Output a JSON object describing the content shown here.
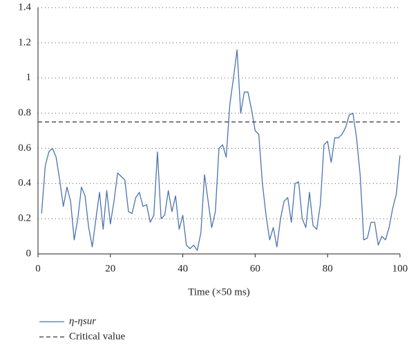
{
  "chart_data": {
    "type": "line",
    "x_label": "Time (×50 ms)",
    "x": [
      1,
      2,
      3,
      4,
      5,
      6,
      7,
      8,
      9,
      10,
      11,
      12,
      13,
      14,
      15,
      16,
      17,
      18,
      19,
      20,
      21,
      22,
      23,
      24,
      25,
      26,
      27,
      28,
      29,
      30,
      31,
      32,
      33,
      34,
      35,
      36,
      37,
      38,
      39,
      40,
      41,
      42,
      43,
      44,
      45,
      46,
      47,
      48,
      49,
      50,
      51,
      52,
      53,
      54,
      55,
      56,
      57,
      58,
      59,
      60,
      61,
      62,
      63,
      64,
      65,
      66,
      67,
      68,
      69,
      70,
      71,
      72,
      73,
      74,
      75,
      76,
      77,
      78,
      79,
      80,
      81,
      82,
      83,
      84,
      85,
      86,
      87,
      88,
      89,
      90,
      91,
      92,
      93,
      94,
      95,
      96,
      97,
      98,
      99,
      100
    ],
    "series": [
      {
        "name": "η-ηsur",
        "color": "#4a72b0",
        "values": [
          0.23,
          0.5,
          0.58,
          0.6,
          0.55,
          0.42,
          0.27,
          0.38,
          0.3,
          0.08,
          0.2,
          0.38,
          0.33,
          0.15,
          0.04,
          0.2,
          0.35,
          0.14,
          0.36,
          0.17,
          0.3,
          0.46,
          0.44,
          0.42,
          0.24,
          0.23,
          0.32,
          0.35,
          0.27,
          0.28,
          0.18,
          0.22,
          0.58,
          0.2,
          0.22,
          0.36,
          0.24,
          0.33,
          0.14,
          0.22,
          0.05,
          0.03,
          0.05,
          0.02,
          0.12,
          0.45,
          0.3,
          0.15,
          0.24,
          0.6,
          0.62,
          0.55,
          0.85,
          1.0,
          1.16,
          0.8,
          0.92,
          0.92,
          0.82,
          0.7,
          0.68,
          0.4,
          0.22,
          0.08,
          0.15,
          0.04,
          0.2,
          0.3,
          0.32,
          0.18,
          0.4,
          0.41,
          0.2,
          0.15,
          0.35,
          0.16,
          0.14,
          0.28,
          0.62,
          0.64,
          0.52,
          0.66,
          0.66,
          0.68,
          0.72,
          0.79,
          0.8,
          0.66,
          0.45,
          0.08,
          0.09,
          0.18,
          0.18,
          0.05,
          0.1,
          0.08,
          0.15,
          0.26,
          0.34,
          0.56
        ]
      },
      {
        "name": "Critical value",
        "color": "#333333",
        "dashed": true,
        "value": 0.75
      }
    ],
    "xlim": [
      0,
      100
    ],
    "xticks": [
      0,
      20,
      40,
      60,
      80,
      100
    ],
    "ylim": [
      0,
      1.4
    ],
    "yticks": [
      0,
      0.2,
      0.4,
      0.6,
      0.8,
      1,
      1.2,
      1.4
    ],
    "grid": true
  }
}
